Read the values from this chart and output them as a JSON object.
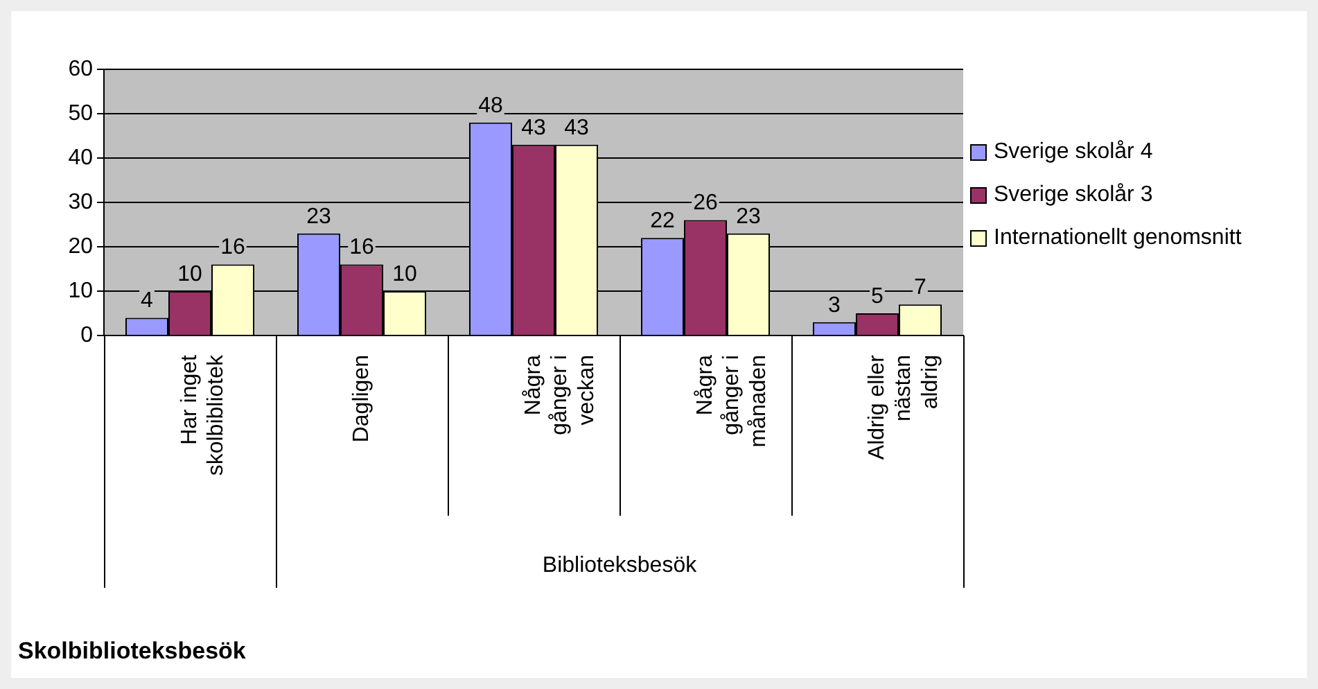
{
  "chart_data": {
    "type": "bar",
    "title": "Skolbiblioteksbesök",
    "xlabel": "Biblioteksbesök",
    "categories": [
      "Har inget\nskolbibliotek",
      "Dagligen",
      "Några\ngånger i\nveckan",
      "Några\ngånger i\nmånaden",
      "Aldrig eller\nnästan\naldrig"
    ],
    "series": [
      {
        "name": "Sverige skolår 4",
        "color": "#9999ff",
        "values": [
          4,
          23,
          48,
          22,
          3
        ]
      },
      {
        "name": "Sverige skolår 3",
        "color": "#993366",
        "values": [
          10,
          16,
          43,
          26,
          5
        ]
      },
      {
        "name": "Internationellt genomsnitt",
        "color": "#ffffcc",
        "values": [
          16,
          10,
          43,
          23,
          7
        ]
      }
    ],
    "ylim": [
      0,
      60
    ],
    "yticks": [
      0,
      10,
      20,
      30,
      40,
      50,
      60
    ],
    "grid": "y",
    "legend": "right",
    "data_labels": true
  }
}
